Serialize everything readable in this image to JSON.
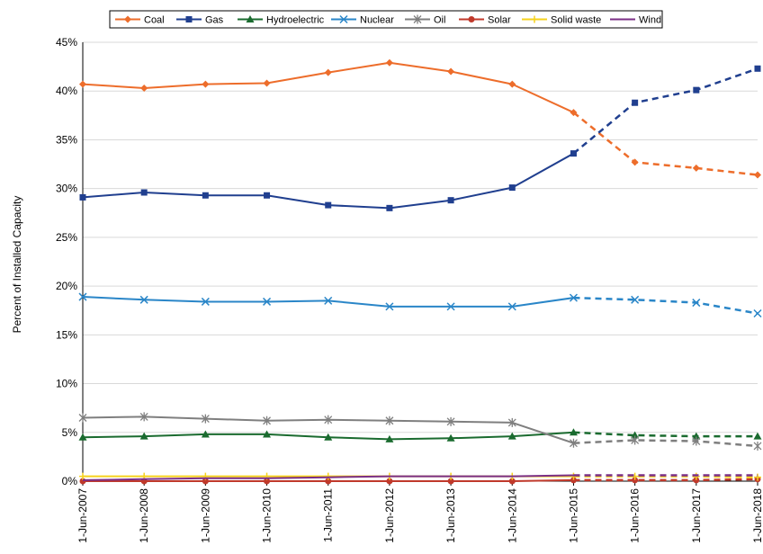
{
  "chart_data": {
    "type": "line",
    "title": "",
    "xlabel": "",
    "ylabel": "Percent of Installed Capacity",
    "categories": [
      "1-Jun-2007",
      "1-Jun-2008",
      "1-Jun-2009",
      "1-Jun-2010",
      "1-Jun-2011",
      "1-Jun-2012",
      "1-Jun-2013",
      "1-Jun-2014",
      "1-Jun-2015",
      "1-Jun-2016",
      "1-Jun-2017",
      "1-Jun-2018"
    ],
    "ylim": [
      0,
      45
    ],
    "yticks": [
      "0%",
      "5%",
      "10%",
      "15%",
      "20%",
      "25%",
      "30%",
      "35%",
      "40%",
      "45%"
    ],
    "projection_starts_at": "1-Jun-2015",
    "legend_position": "top",
    "series": [
      {
        "name": "Coal",
        "color": "#ED6D2B",
        "marker": "diamond",
        "values": [
          40.7,
          40.3,
          40.7,
          40.8,
          41.9,
          42.9,
          42.0,
          40.7,
          37.8,
          32.7,
          32.1,
          31.4
        ]
      },
      {
        "name": "Gas",
        "color": "#203F8F",
        "marker": "square",
        "values": [
          29.1,
          29.6,
          29.3,
          29.3,
          28.3,
          28.0,
          28.8,
          30.1,
          33.6,
          38.8,
          40.1,
          42.3
        ]
      },
      {
        "name": "Hydroelectric",
        "color": "#1A6B2F",
        "marker": "triangle",
        "values": [
          4.5,
          4.6,
          4.8,
          4.8,
          4.5,
          4.3,
          4.4,
          4.6,
          5.0,
          4.7,
          4.6,
          4.6
        ]
      },
      {
        "name": "Nuclear",
        "color": "#2A86C8",
        "marker": "x",
        "values": [
          18.9,
          18.6,
          18.4,
          18.4,
          18.5,
          17.9,
          17.9,
          17.9,
          18.8,
          18.6,
          18.3,
          17.2
        ]
      },
      {
        "name": "Oil",
        "color": "#7F7F7F",
        "marker": "star",
        "values": [
          6.5,
          6.6,
          6.4,
          6.2,
          6.3,
          6.2,
          6.1,
          6.0,
          3.9,
          4.2,
          4.1,
          3.6
        ]
      },
      {
        "name": "Solar",
        "color": "#C0392B",
        "marker": "circle",
        "values": [
          0.0,
          0.0,
          0.0,
          0.0,
          0.0,
          0.0,
          0.0,
          0.0,
          0.1,
          0.1,
          0.1,
          0.2
        ]
      },
      {
        "name": "Solid waste",
        "color": "#F6D21C",
        "marker": "plus",
        "values": [
          0.5,
          0.5,
          0.5,
          0.5,
          0.5,
          0.5,
          0.5,
          0.5,
          0.5,
          0.5,
          0.5,
          0.4
        ]
      },
      {
        "name": "Wind",
        "color": "#7B2F86",
        "marker": "none",
        "values": [
          0.1,
          0.2,
          0.3,
          0.3,
          0.4,
          0.5,
          0.5,
          0.5,
          0.6,
          0.6,
          0.6,
          0.6
        ]
      }
    ]
  }
}
